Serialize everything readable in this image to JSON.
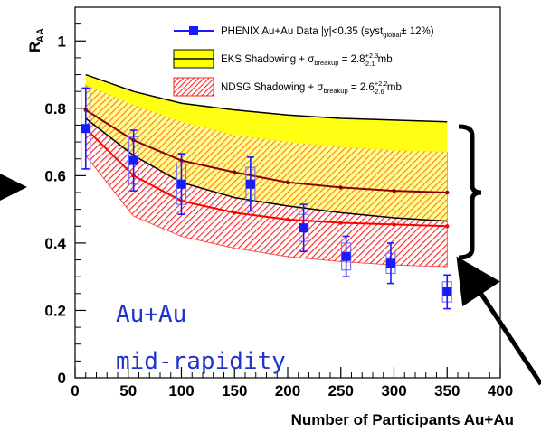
{
  "chart_data": {
    "type": "line",
    "title": "",
    "xlabel": "Number of Participants Au+Au",
    "ylabel_main": "R",
    "ylabel_sub": "AA",
    "xlim": [
      0,
      400
    ],
    "ylim": [
      0,
      1.1
    ],
    "x_ticks": [
      "0",
      "50",
      "100",
      "150",
      "200",
      "250",
      "300",
      "350",
      "400"
    ],
    "y_ticks": [
      "0",
      "0.2",
      "0.4",
      "0.6",
      "0.8",
      "1"
    ],
    "x_tick_values": [
      0,
      50,
      100,
      150,
      200,
      250,
      300,
      350,
      400
    ],
    "y_tick_values": [
      0,
      0.2,
      0.4,
      0.6,
      0.8,
      1.0
    ],
    "legend": [
      {
        "key": "data",
        "text": "PHENIX Au+Au Data |y|<0.35 (syst",
        "sub": "global",
        "after": "± 12%)"
      },
      {
        "key": "eks",
        "text": "EKS Shadowing + σ",
        "sub": "breakup",
        "mid": " = 2.8",
        "sup": "+2.3",
        "sub2": "-2.1",
        "after": " mb"
      },
      {
        "key": "ndsg",
        "text": "NDSG Shadowing + σ",
        "sub": "breakup",
        "mid": " = 2.6",
        "sup": "+2.2",
        "sub2": "-2.6",
        "after": " mb"
      }
    ],
    "legend_position": "top-right",
    "annotation_lines": [
      "Au+Au",
      "mid-rapidity"
    ],
    "colors": {
      "data": "#1a1aff",
      "eks_band": "#ffff00",
      "eks_line": "#8b0000",
      "ndsg_line": "#ff0000",
      "ndsg_hatch": "#ff2020",
      "bracket": "#000000",
      "arrow": "#000000"
    },
    "series": [
      {
        "name": "PHENIX Au+Au Data |y|<0.35",
        "kind": "points",
        "x": [
          10,
          55,
          100,
          165,
          215,
          255,
          297,
          350
        ],
        "y": [
          0.74,
          0.645,
          0.575,
          0.575,
          0.445,
          0.36,
          0.34,
          0.255
        ],
        "stat_err": [
          0.12,
          0.09,
          0.09,
          0.08,
          0.07,
          0.06,
          0.06,
          0.05
        ],
        "syst_err": [
          0.12,
          0.07,
          0.06,
          0.05,
          0.04,
          0.04,
          0.03,
          0.03
        ]
      },
      {
        "name": "EKS Shadowing",
        "kind": "band-line",
        "x": [
          10,
          55,
          100,
          150,
          200,
          250,
          300,
          350
        ],
        "center": [
          0.795,
          0.705,
          0.645,
          0.61,
          0.58,
          0.565,
          0.555,
          0.55
        ],
        "upper": [
          0.9,
          0.85,
          0.815,
          0.795,
          0.78,
          0.77,
          0.765,
          0.76
        ],
        "lower": [
          0.77,
          0.66,
          0.58,
          0.535,
          0.51,
          0.49,
          0.475,
          0.465
        ]
      },
      {
        "name": "NDSG Shadowing",
        "kind": "band-line",
        "x": [
          10,
          55,
          100,
          150,
          200,
          250,
          300,
          350
        ],
        "center": [
          0.74,
          0.6,
          0.525,
          0.49,
          0.47,
          0.46,
          0.455,
          0.45
        ],
        "upper": [
          0.87,
          0.81,
          0.76,
          0.72,
          0.7,
          0.685,
          0.675,
          0.67
        ],
        "lower": [
          0.66,
          0.48,
          0.42,
          0.385,
          0.36,
          0.345,
          0.335,
          0.33
        ]
      }
    ]
  }
}
